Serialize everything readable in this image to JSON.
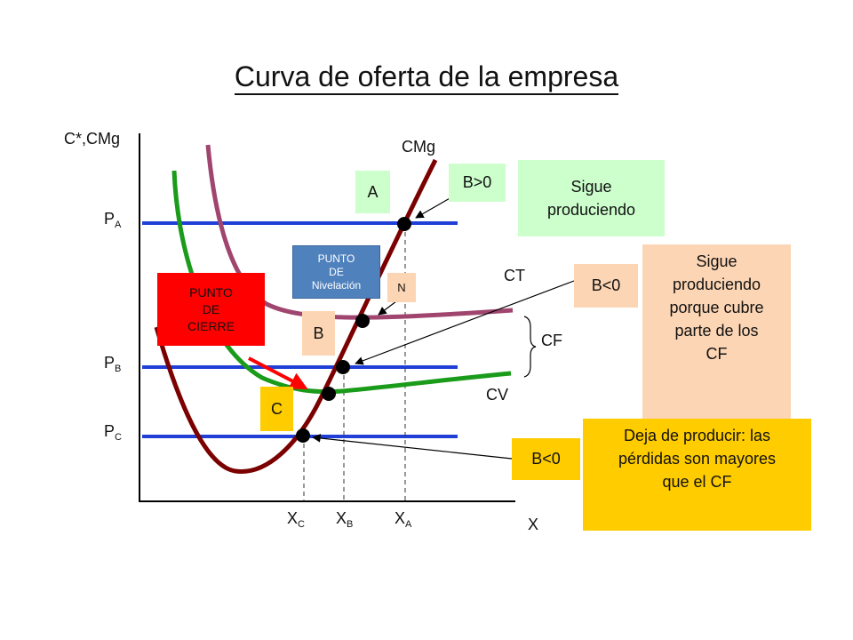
{
  "title": "Curva de oferta de la empresa",
  "axes": {
    "y_label": "C*,CMg",
    "x_label": "X"
  },
  "curves": {
    "cmg": "CMg",
    "ct": "CT",
    "cv": "CV"
  },
  "price_levels": {
    "pa": {
      "main": "P",
      "sub": "A"
    },
    "pb": {
      "main": "P",
      "sub": "B"
    },
    "pc": {
      "main": "P",
      "sub": "C"
    }
  },
  "quantities": {
    "xc": {
      "main": "X",
      "sub": "C"
    },
    "xb": {
      "main": "X",
      "sub": "B"
    },
    "xa": {
      "main": "X",
      "sub": "A"
    }
  },
  "boxes": {
    "a": "A",
    "b": "B",
    "c": "C",
    "n": "N",
    "punto_nivelacion": [
      "PUNTO",
      "DE",
      "Nivelación"
    ],
    "punto_cierre": [
      "PUNTO",
      "DE",
      "CIERRE"
    ],
    "b_pos": "B>0",
    "b_neg_1": "B<0",
    "b_neg_2": "B<0",
    "cf": "CF"
  },
  "notes": {
    "sigue": [
      "Sigue",
      "produciendo"
    ],
    "sigue_cf": [
      "Sigue",
      "produciendo",
      "porque cubre",
      "parte de los",
      "CF"
    ],
    "deja": [
      "Deja de producir: las",
      "pérdidas son mayores",
      "que el CF"
    ]
  },
  "colors": {
    "cmg_curve": "#7b0000",
    "ct_curve": "#a0456f",
    "cv_curve": "#1a9b1a",
    "price_lines": "#1f3fd6",
    "box_green": "#ccffcc",
    "box_peach": "#fcd5b4",
    "box_yellow": "#ffcc00",
    "box_red": "#ff0000",
    "box_blue": "#4f81bd"
  }
}
